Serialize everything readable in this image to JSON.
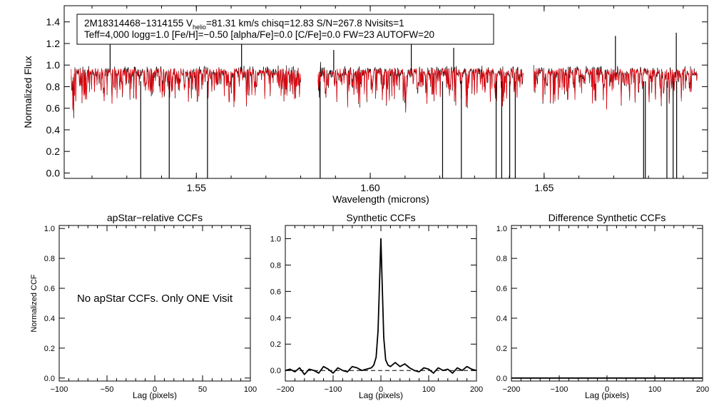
{
  "colors": {
    "observed": "#000000",
    "model": "#e8000b",
    "axes": "#000000"
  },
  "chart_data": [
    {
      "type": "line",
      "id": "spectrum",
      "info_box": {
        "line1_a": "2M18314468−1314155  V",
        "line1_sub": "helio",
        "line1_b": "=81.31 km/s  chisq=12.83  S/N=267.8  Nvisits=1",
        "line2": "Teff=4,000 logg=1.0 [Fe/H]=−0.50 [alpha/Fe]=0.0 [C/Fe]=0.0 FW=23 AUTOFW=20"
      },
      "xlabel": "Wavelength (microns)",
      "ylabel": "Normalized Flux",
      "xlim": [
        1.512,
        1.697
      ],
      "ylim": [
        -0.05,
        1.55
      ],
      "xticks": [
        1.55,
        1.6,
        1.65
      ],
      "xtick_labels": [
        "1.55",
        "1.60",
        "1.65"
      ],
      "yticks": [
        0.0,
        0.2,
        0.4,
        0.6,
        0.8,
        1.0,
        1.2,
        1.4
      ],
      "ytick_labels": [
        "0.0",
        "0.2",
        "0.4",
        "0.6",
        "0.8",
        "1.0",
        "1.2",
        "1.4"
      ],
      "chips": [
        [
          1.514,
          1.58
        ],
        [
          1.585,
          1.644
        ],
        [
          1.647,
          1.694
        ]
      ],
      "series": [
        {
          "role": "observed",
          "color": "#000000"
        },
        {
          "role": "model",
          "color": "#e8000b"
        }
      ],
      "deep_absorption": [
        [
          1.534,
          -0.05
        ],
        [
          1.5422,
          -0.05
        ],
        [
          1.5532,
          -0.05
        ],
        [
          1.5856,
          -0.05
        ],
        [
          1.6208,
          -0.05
        ],
        [
          1.6262,
          -0.05
        ],
        [
          1.6362,
          -0.05
        ],
        [
          1.6378,
          -0.05
        ],
        [
          1.6401,
          -0.05
        ],
        [
          1.6417,
          -0.05
        ],
        [
          1.6786,
          -0.05
        ],
        [
          1.6791,
          -0.05
        ],
        [
          1.6853,
          -0.05
        ],
        [
          1.6871,
          -0.05
        ],
        [
          1.6881,
          -0.05
        ]
      ],
      "emission_spikes": [
        [
          1.5252,
          1.2
        ],
        [
          1.563,
          1.22
        ],
        [
          1.5895,
          1.14
        ],
        [
          1.6118,
          1.34
        ],
        [
          1.624,
          1.16
        ],
        [
          1.6705,
          1.27
        ],
        [
          1.688,
          1.3
        ]
      ]
    },
    {
      "type": "line",
      "id": "apstar-ccf",
      "title": "apStar−relative CCFs",
      "xlabel": "Lag (pixels)",
      "ylabel": "Normalized CCF",
      "xlim": [
        -100,
        100
      ],
      "ylim": [
        -0.02,
        1.02
      ],
      "xticks": [
        -100,
        -50,
        0,
        50,
        100
      ],
      "xtick_labels": [
        "−100",
        "−50",
        "0",
        "50",
        "100"
      ],
      "yticks": [
        0.0,
        0.2,
        0.4,
        0.6,
        0.8,
        1.0
      ],
      "ytick_labels": [
        "0.0",
        "0.2",
        "0.4",
        "0.6",
        "0.8",
        "1.0"
      ],
      "annotation": "No apStar CCFs.  Only ONE Visit",
      "series": []
    },
    {
      "type": "line",
      "id": "synthetic-ccf",
      "title": "Synthetic CCFs",
      "xlabel": "Lag (pixels)",
      "xlim": [
        -200,
        200
      ],
      "ylim": [
        -0.08,
        1.1
      ],
      "xticks": [
        -200,
        -100,
        0,
        100,
        200
      ],
      "xtick_labels": [
        "−200",
        "−100",
        "0",
        "100",
        "200"
      ],
      "yticks": [
        0.0,
        0.2,
        0.4,
        0.6,
        0.8,
        1.0
      ],
      "ytick_labels": [
        "0.0",
        "0.2",
        "0.4",
        "0.6",
        "0.8",
        "1.0"
      ],
      "zero_line": "dashed",
      "series": [
        {
          "x": [
            -200,
            -190,
            -180,
            -170,
            -160,
            -150,
            -140,
            -130,
            -120,
            -110,
            -100,
            -90,
            -80,
            -70,
            -60,
            -50,
            -40,
            -30,
            -20,
            -15,
            -10,
            -6,
            -3,
            0,
            3,
            6,
            10,
            15,
            20,
            30,
            40,
            50,
            60,
            70,
            80,
            90,
            100,
            110,
            120,
            130,
            140,
            150,
            160,
            170,
            180,
            190,
            200
          ],
          "y": [
            0.0,
            0.01,
            -0.01,
            0.02,
            -0.03,
            0.01,
            0.0,
            -0.02,
            0.03,
            0.01,
            -0.02,
            0.02,
            0.0,
            -0.01,
            0.03,
            0.02,
            0.0,
            0.01,
            0.02,
            0.04,
            0.1,
            0.3,
            0.65,
            1.0,
            0.62,
            0.25,
            0.08,
            0.04,
            0.03,
            0.06,
            0.03,
            0.05,
            0.02,
            0.0,
            -0.01,
            0.02,
            0.01,
            -0.02,
            0.02,
            0.0,
            0.01,
            -0.02,
            0.02,
            0.0,
            0.03,
            0.01,
            0.0
          ]
        }
      ]
    },
    {
      "type": "line",
      "id": "difference-ccf",
      "title": "Difference Synthetic CCFs",
      "xlabel": "Lag (pixels)",
      "xlim": [
        -200,
        200
      ],
      "ylim": [
        -0.02,
        1.02
      ],
      "xticks": [
        -200,
        -100,
        0,
        100,
        200
      ],
      "xtick_labels": [
        "−200",
        "−100",
        "0",
        "100",
        "200"
      ],
      "yticks": [
        0.0,
        0.2,
        0.4,
        0.6,
        0.8,
        1.0
      ],
      "ytick_labels": [
        "0.0",
        "0.2",
        "0.4",
        "0.6",
        "0.8",
        "1.0"
      ],
      "series": [
        {
          "x": [
            -200,
            200
          ],
          "y": [
            0.0,
            0.0
          ]
        }
      ]
    }
  ]
}
